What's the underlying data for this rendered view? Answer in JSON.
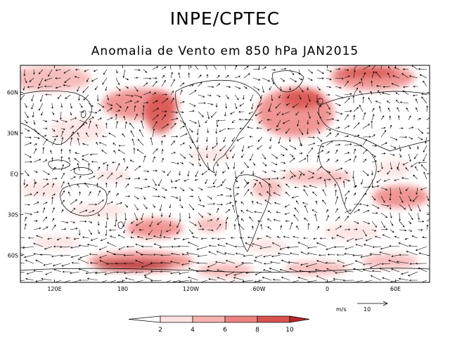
{
  "header": {
    "title": "INPE/CPTEC",
    "subtitle": "Anomalia de Vento em 850 hPa JAN2015"
  },
  "map": {
    "lat_labels": [
      "60N",
      "30N",
      "EQ",
      "30S",
      "60S"
    ],
    "lat_values": [
      60,
      30,
      0,
      -30,
      -60
    ],
    "lon_labels": [
      "120E",
      "180",
      "120W",
      "60W",
      "0",
      "60E"
    ],
    "lon_values": [
      120,
      180,
      240,
      300,
      360,
      420
    ],
    "lon_range": [
      90,
      450
    ],
    "lat_range": [
      -80,
      80
    ]
  },
  "reference_vector": {
    "unit": "m/s",
    "value": "10"
  },
  "colorbar": {
    "ticks": [
      "2",
      "4",
      "6",
      "8",
      "10"
    ],
    "colors": [
      "#ffffff",
      "#fbe1df",
      "#f5b3b0",
      "#ec8380",
      "#d9534f",
      "#b52a2a"
    ]
  },
  "colors": {
    "shade_1": "#fbe1df",
    "shade_2": "#f5b3b0",
    "shade_3": "#ec8380",
    "shade_4": "#d9534f",
    "shade_5": "#b52a2a"
  }
}
